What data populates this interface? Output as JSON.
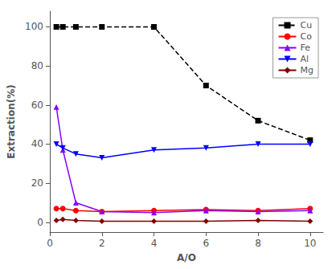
{
  "chart_data": {
    "type": "line",
    "xlabel": "A/O",
    "ylabel": "Extraction(%)",
    "x": [
      0.25,
      0.5,
      1,
      2,
      4,
      6,
      8,
      10
    ],
    "series": [
      {
        "name": "Cu",
        "color": "#000000",
        "marker": "square",
        "line_style": "dashed",
        "values": [
          100,
          100,
          100,
          100,
          100,
          70,
          52,
          42
        ]
      },
      {
        "name": "Co",
        "color": "#ff0000",
        "marker": "circle",
        "line_style": "solid",
        "values": [
          7,
          7,
          6,
          5.5,
          6,
          6.5,
          6,
          7
        ]
      },
      {
        "name": "Fe",
        "color": "#8800ff",
        "marker": "triangle-up",
        "line_style": "solid",
        "values": [
          59,
          37,
          10,
          5.5,
          5,
          6,
          5.5,
          6
        ]
      },
      {
        "name": "Al",
        "color": "#0000ff",
        "marker": "triangle-down",
        "line_style": "solid",
        "values": [
          40,
          38,
          35,
          33,
          37,
          38,
          40,
          40
        ]
      },
      {
        "name": "Mg",
        "color": "#800000",
        "marker": "diamond",
        "line_style": "solid",
        "values": [
          1,
          1.5,
          1,
          0.5,
          0.5,
          0.5,
          1,
          0.5
        ]
      }
    ],
    "xlim": [
      0,
      10.5
    ],
    "ylim": [
      -5,
      108
    ],
    "xticks": [
      0,
      2,
      4,
      6,
      8,
      10
    ],
    "yticks": [
      0,
      20,
      40,
      60,
      80,
      100
    ],
    "legend": "upper right",
    "grid": false
  }
}
